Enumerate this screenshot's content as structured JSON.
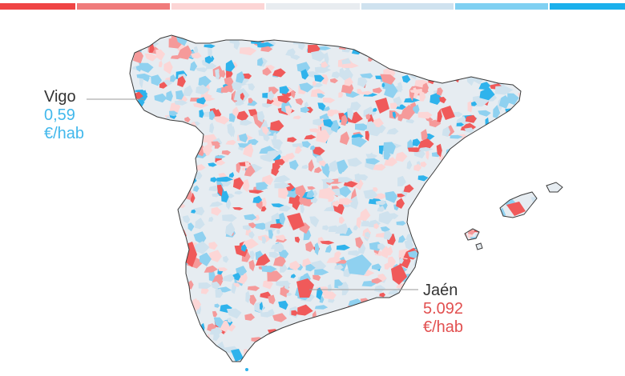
{
  "legend": {
    "colors": [
      "#ef4444",
      "#f07b7b",
      "#fcd5d5",
      "#e8ecf0",
      "#cfe2ef",
      "#7fd0f2",
      "#1ab0ec"
    ]
  },
  "map": {
    "land_color": "#e6ecf1",
    "outline_color": "#3a3a3a",
    "palette": [
      "#f05a5a",
      "#f59a9a",
      "#fcd6d6",
      "#cfe2ee",
      "#8fd1f0",
      "#2fb3ec"
    ]
  },
  "callouts": {
    "vigo": {
      "name": "Vigo",
      "value": "0,59",
      "unit": "€/hab",
      "color": "#42b8ec"
    },
    "jaen": {
      "name": "Jaén",
      "value": "5.092",
      "unit": "€/hab",
      "color": "#e25050"
    }
  }
}
